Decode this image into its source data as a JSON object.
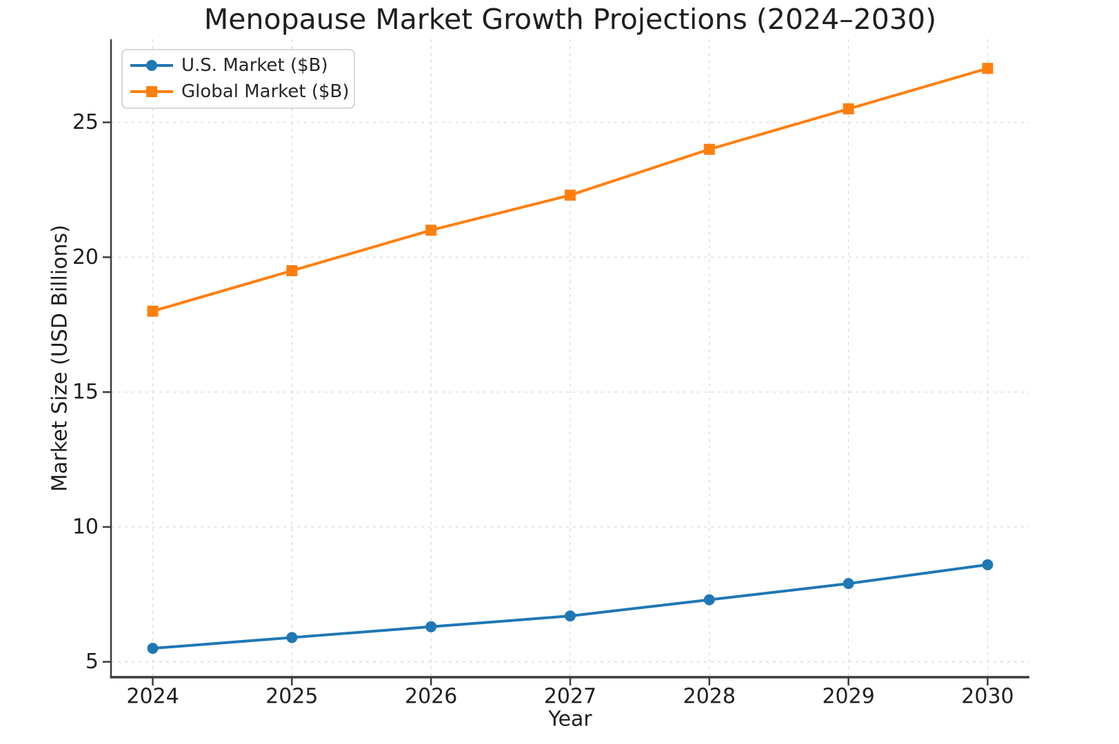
{
  "chart_data": {
    "type": "line",
    "title": "Menopause Market Growth Projections (2024–2030)",
    "xlabel": "Year",
    "ylabel": "Market Size (USD Billions)",
    "x": [
      2024,
      2025,
      2026,
      2027,
      2028,
      2029,
      2030
    ],
    "series": [
      {
        "name": "U.S. Market ($B)",
        "slug": "us-market",
        "color": "#1f77b4",
        "marker": "circle",
        "values": [
          5.5,
          5.9,
          6.3,
          6.7,
          7.3,
          7.9,
          8.6
        ]
      },
      {
        "name": "Global Market ($B)",
        "slug": "global-market",
        "color": "#ff7f0e",
        "marker": "square",
        "values": [
          18.0,
          19.5,
          21.0,
          22.3,
          24.0,
          25.5,
          27.0
        ]
      }
    ],
    "xticks": [
      2024,
      2025,
      2026,
      2027,
      2028,
      2029,
      2030
    ],
    "yticks": [
      5,
      10,
      15,
      20,
      25
    ],
    "xlim": [
      2023.7,
      2030.3
    ],
    "ylim": [
      4.43,
      28.08
    ],
    "grid": true,
    "legend_position": "upper left",
    "text_color": "#1f1f1f",
    "grid_color": "#d8d8d8",
    "spine_color": "#3b3b3b"
  }
}
